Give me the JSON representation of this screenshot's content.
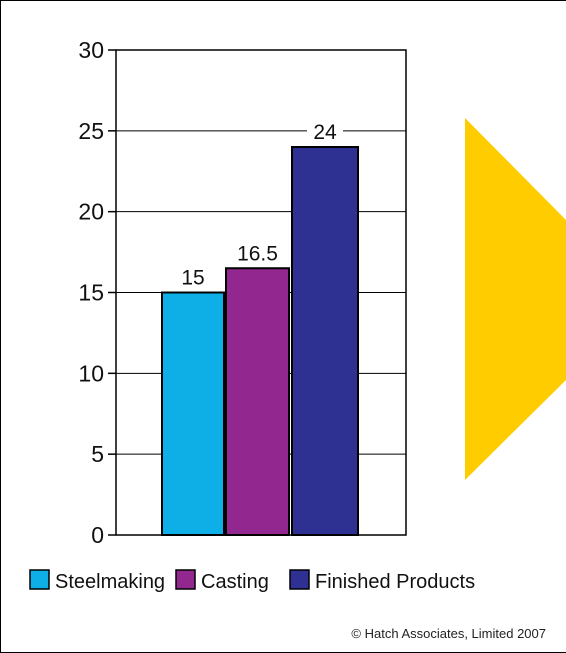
{
  "chart_data": {
    "type": "bar",
    "categories": [
      "Steelmaking",
      "Casting",
      "Finished Products"
    ],
    "values": [
      15,
      16.5,
      24
    ],
    "data_labels": [
      "15",
      "16.5",
      "24"
    ],
    "colors": [
      "#0DAFE6",
      "#92278F",
      "#2E3192"
    ],
    "title": "",
    "xlabel": "",
    "ylabel": "",
    "ylim": [
      0,
      30
    ],
    "yticks": [
      "0",
      "5",
      "10",
      "15",
      "20",
      "25",
      "30"
    ],
    "grid": true,
    "legend_position": "bottom"
  },
  "decoration": {
    "arrow_color": "#FFCC00"
  },
  "footer": {
    "copyright": "© Hatch Associates, Limited 2007"
  }
}
